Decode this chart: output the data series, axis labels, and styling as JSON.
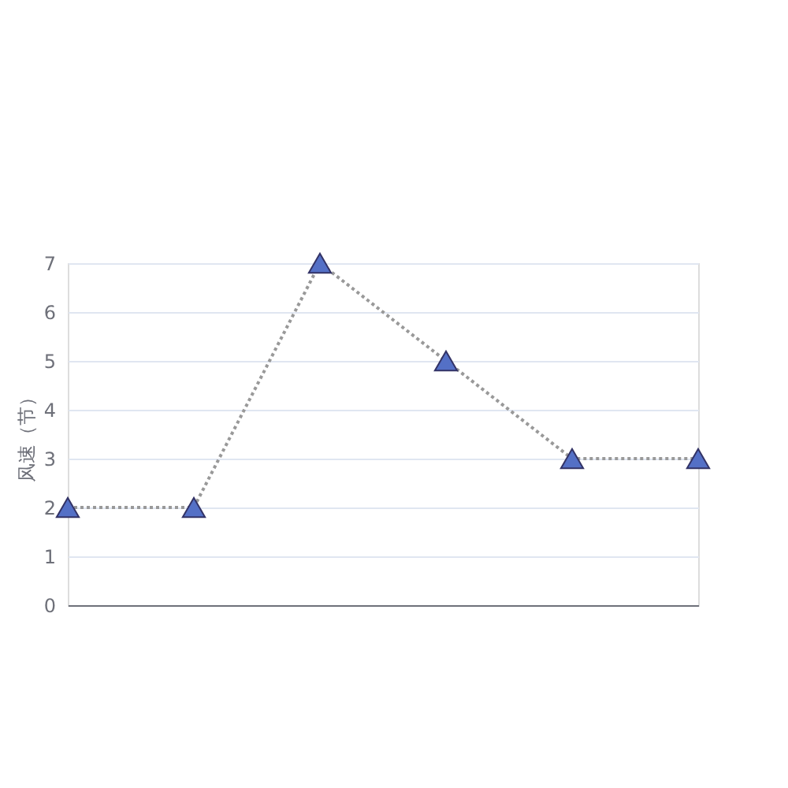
{
  "chart_data": {
    "type": "line",
    "ylabel": "风速（节）",
    "categories": [
      null,
      null,
      null,
      null,
      null,
      null
    ],
    "series": [
      {
        "color": "#5470c6",
        "values": [
          2,
          2,
          7,
          5,
          3,
          3
        ]
      }
    ],
    "ylim": [
      0,
      7
    ],
    "yticks": [
      0,
      1,
      2,
      3,
      4,
      5,
      6,
      7
    ],
    "grid": "y",
    "marker": "triangle",
    "line_style": "dotted",
    "legend": false
  }
}
